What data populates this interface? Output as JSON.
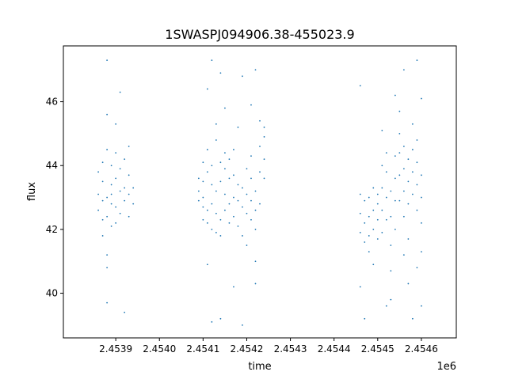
{
  "chart_data": {
    "type": "scatter",
    "title": "1SWASPJ094906.38-455023.9",
    "xlabel": "time",
    "ylabel": "flux",
    "x_offset_label": "1e6",
    "x_ticks": [
      {
        "value": 2.4539,
        "label": "2.4539"
      },
      {
        "value": 2.454,
        "label": "2.4540"
      },
      {
        "value": 2.4541,
        "label": "2.4541"
      },
      {
        "value": 2.4542,
        "label": "2.4542"
      },
      {
        "value": 2.4543,
        "label": "2.4543"
      },
      {
        "value": 2.4544,
        "label": "2.4544"
      },
      {
        "value": 2.4545,
        "label": "2.4545"
      },
      {
        "value": 2.4546,
        "label": "2.4546"
      }
    ],
    "y_ticks": [
      {
        "value": 40,
        "label": "40"
      },
      {
        "value": 42,
        "label": "42"
      },
      {
        "value": 44,
        "label": "44"
      },
      {
        "value": 46,
        "label": "46"
      }
    ],
    "xlim": [
      2.45378,
      2.45468
    ],
    "ylim": [
      38.6,
      47.75
    ],
    "grid": false,
    "marker_color": "#1f77b4",
    "series": [
      {
        "points": [
          [
            2.45386,
            43.1
          ],
          [
            2.45386,
            42.6
          ],
          [
            2.45386,
            43.8
          ],
          [
            2.45387,
            42.3
          ],
          [
            2.45387,
            43.5
          ],
          [
            2.45387,
            41.8
          ],
          [
            2.45387,
            44.1
          ],
          [
            2.45387,
            42.9
          ],
          [
            2.45388,
            40.8
          ],
          [
            2.45388,
            42.4
          ],
          [
            2.45388,
            43.0
          ],
          [
            2.45388,
            44.5
          ],
          [
            2.45388,
            41.2
          ],
          [
            2.45388,
            45.6
          ],
          [
            2.45388,
            39.7
          ],
          [
            2.45388,
            47.3
          ],
          [
            2.45389,
            43.4
          ],
          [
            2.45389,
            42.8
          ],
          [
            2.45389,
            44.0
          ],
          [
            2.45389,
            42.1
          ],
          [
            2.45389,
            43.1
          ],
          [
            2.4539,
            43.6
          ],
          [
            2.4539,
            42.7
          ],
          [
            2.4539,
            44.4
          ],
          [
            2.4539,
            42.2
          ],
          [
            2.4539,
            45.3
          ],
          [
            2.45391,
            43.2
          ],
          [
            2.45391,
            43.9
          ],
          [
            2.45391,
            42.5
          ],
          [
            2.45391,
            46.3
          ],
          [
            2.45392,
            43.3
          ],
          [
            2.45392,
            42.9
          ],
          [
            2.45392,
            44.2
          ],
          [
            2.45392,
            39.4
          ],
          [
            2.45393,
            43.1
          ],
          [
            2.45393,
            43.7
          ],
          [
            2.45393,
            42.4
          ],
          [
            2.45393,
            44.6
          ],
          [
            2.45394,
            43.3
          ],
          [
            2.45394,
            42.8
          ],
          [
            2.45409,
            43.2
          ],
          [
            2.45409,
            43.6
          ],
          [
            2.45409,
            42.9
          ],
          [
            2.4541,
            42.7
          ],
          [
            2.4541,
            43.5
          ],
          [
            2.4541,
            44.1
          ],
          [
            2.4541,
            42.3
          ],
          [
            2.4541,
            43.0
          ],
          [
            2.45411,
            42.6
          ],
          [
            2.45411,
            43.8
          ],
          [
            2.45411,
            42.2
          ],
          [
            2.45411,
            44.5
          ],
          [
            2.45411,
            46.4
          ],
          [
            2.45411,
            40.9
          ],
          [
            2.45412,
            43.4
          ],
          [
            2.45412,
            42.8
          ],
          [
            2.45412,
            44.0
          ],
          [
            2.45412,
            42.0
          ],
          [
            2.45412,
            47.3
          ],
          [
            2.45412,
            39.1
          ],
          [
            2.45413,
            44.8
          ],
          [
            2.45413,
            43.2
          ],
          [
            2.45413,
            42.5
          ],
          [
            2.45413,
            45.3
          ],
          [
            2.45413,
            41.9
          ],
          [
            2.45414,
            43.5
          ],
          [
            2.45414,
            42.3
          ],
          [
            2.45414,
            44.1
          ],
          [
            2.45414,
            41.8
          ],
          [
            2.45414,
            46.9
          ],
          [
            2.45414,
            39.2
          ],
          [
            2.45415,
            43.9
          ],
          [
            2.45415,
            43.1
          ],
          [
            2.45415,
            44.4
          ],
          [
            2.45415,
            42.6
          ],
          [
            2.45415,
            45.8
          ],
          [
            2.45416,
            43.6
          ],
          [
            2.45416,
            42.8
          ],
          [
            2.45416,
            44.2
          ],
          [
            2.45416,
            42.2
          ],
          [
            2.45417,
            43.0
          ],
          [
            2.45417,
            43.7
          ],
          [
            2.45417,
            42.4
          ],
          [
            2.45417,
            44.5
          ],
          [
            2.45417,
            40.2
          ],
          [
            2.45418,
            42.9
          ],
          [
            2.45418,
            43.4
          ],
          [
            2.45418,
            42.1
          ],
          [
            2.45418,
            45.2
          ],
          [
            2.45419,
            42.7
          ],
          [
            2.45419,
            43.3
          ],
          [
            2.45419,
            41.8
          ],
          [
            2.45419,
            46.8
          ],
          [
            2.45419,
            39.0
          ],
          [
            2.4542,
            43.1
          ],
          [
            2.4542,
            42.5
          ],
          [
            2.4542,
            43.9
          ],
          [
            2.4542,
            41.5
          ],
          [
            2.45421,
            43.6
          ],
          [
            2.45421,
            42.9
          ],
          [
            2.45421,
            44.3
          ],
          [
            2.45421,
            42.3
          ],
          [
            2.45421,
            45.9
          ],
          [
            2.45422,
            42.6
          ],
          [
            2.45422,
            42.0
          ],
          [
            2.45422,
            43.2
          ],
          [
            2.45422,
            41.0
          ],
          [
            2.45422,
            40.3
          ],
          [
            2.45422,
            47.0
          ],
          [
            2.45423,
            43.8
          ],
          [
            2.45423,
            44.6
          ],
          [
            2.45423,
            42.8
          ],
          [
            2.45423,
            45.4
          ],
          [
            2.45424,
            44.2
          ],
          [
            2.45424,
            44.9
          ],
          [
            2.45424,
            43.6
          ],
          [
            2.45424,
            45.2
          ],
          [
            2.45446,
            42.5
          ],
          [
            2.45446,
            43.1
          ],
          [
            2.45446,
            41.9
          ],
          [
            2.45446,
            40.2
          ],
          [
            2.45446,
            46.5
          ],
          [
            2.45447,
            42.2
          ],
          [
            2.45447,
            41.6
          ],
          [
            2.45447,
            42.9
          ],
          [
            2.45447,
            39.2
          ],
          [
            2.45448,
            42.4
          ],
          [
            2.45448,
            41.8
          ],
          [
            2.45448,
            43.0
          ],
          [
            2.45448,
            41.3
          ],
          [
            2.45449,
            42.6
          ],
          [
            2.45449,
            42.0
          ],
          [
            2.45449,
            43.3
          ],
          [
            2.45449,
            40.9
          ],
          [
            2.4545,
            42.3
          ],
          [
            2.4545,
            41.7
          ],
          [
            2.4545,
            43.1
          ],
          [
            2.4545,
            42.8
          ],
          [
            2.45451,
            43.3
          ],
          [
            2.45451,
            42.6
          ],
          [
            2.45451,
            44.0
          ],
          [
            2.45451,
            41.9
          ],
          [
            2.45451,
            45.1
          ],
          [
            2.45452,
            43.8
          ],
          [
            2.45452,
            43.0
          ],
          [
            2.45452,
            44.4
          ],
          [
            2.45452,
            42.3
          ],
          [
            2.45452,
            39.6
          ],
          [
            2.45453,
            42.4
          ],
          [
            2.45453,
            41.5
          ],
          [
            2.45453,
            43.2
          ],
          [
            2.45453,
            40.7
          ],
          [
            2.45453,
            39.8
          ],
          [
            2.45454,
            42.9
          ],
          [
            2.45454,
            43.6
          ],
          [
            2.45454,
            42.0
          ],
          [
            2.45454,
            44.3
          ],
          [
            2.45454,
            46.2
          ],
          [
            2.45455,
            44.4
          ],
          [
            2.45455,
            43.7
          ],
          [
            2.45455,
            45.0
          ],
          [
            2.45455,
            42.9
          ],
          [
            2.45455,
            45.7
          ],
          [
            2.45456,
            43.9
          ],
          [
            2.45456,
            43.2
          ],
          [
            2.45456,
            44.6
          ],
          [
            2.45456,
            42.4
          ],
          [
            2.45456,
            47.0
          ],
          [
            2.45456,
            41.2
          ],
          [
            2.45457,
            43.5
          ],
          [
            2.45457,
            42.8
          ],
          [
            2.45457,
            44.2
          ],
          [
            2.45457,
            41.7
          ],
          [
            2.45457,
            40.3
          ],
          [
            2.45458,
            43.8
          ],
          [
            2.45458,
            44.5
          ],
          [
            2.45458,
            43.1
          ],
          [
            2.45458,
            45.3
          ],
          [
            2.45458,
            39.2
          ],
          [
            2.45459,
            44.1
          ],
          [
            2.45459,
            43.4
          ],
          [
            2.45459,
            44.8
          ],
          [
            2.45459,
            42.6
          ],
          [
            2.45459,
            47.3
          ],
          [
            2.45459,
            40.8
          ],
          [
            2.4546,
            43.0
          ],
          [
            2.4546,
            42.2
          ],
          [
            2.4546,
            43.7
          ],
          [
            2.4546,
            41.3
          ],
          [
            2.4546,
            46.1
          ],
          [
            2.4546,
            39.6
          ]
        ]
      }
    ]
  }
}
